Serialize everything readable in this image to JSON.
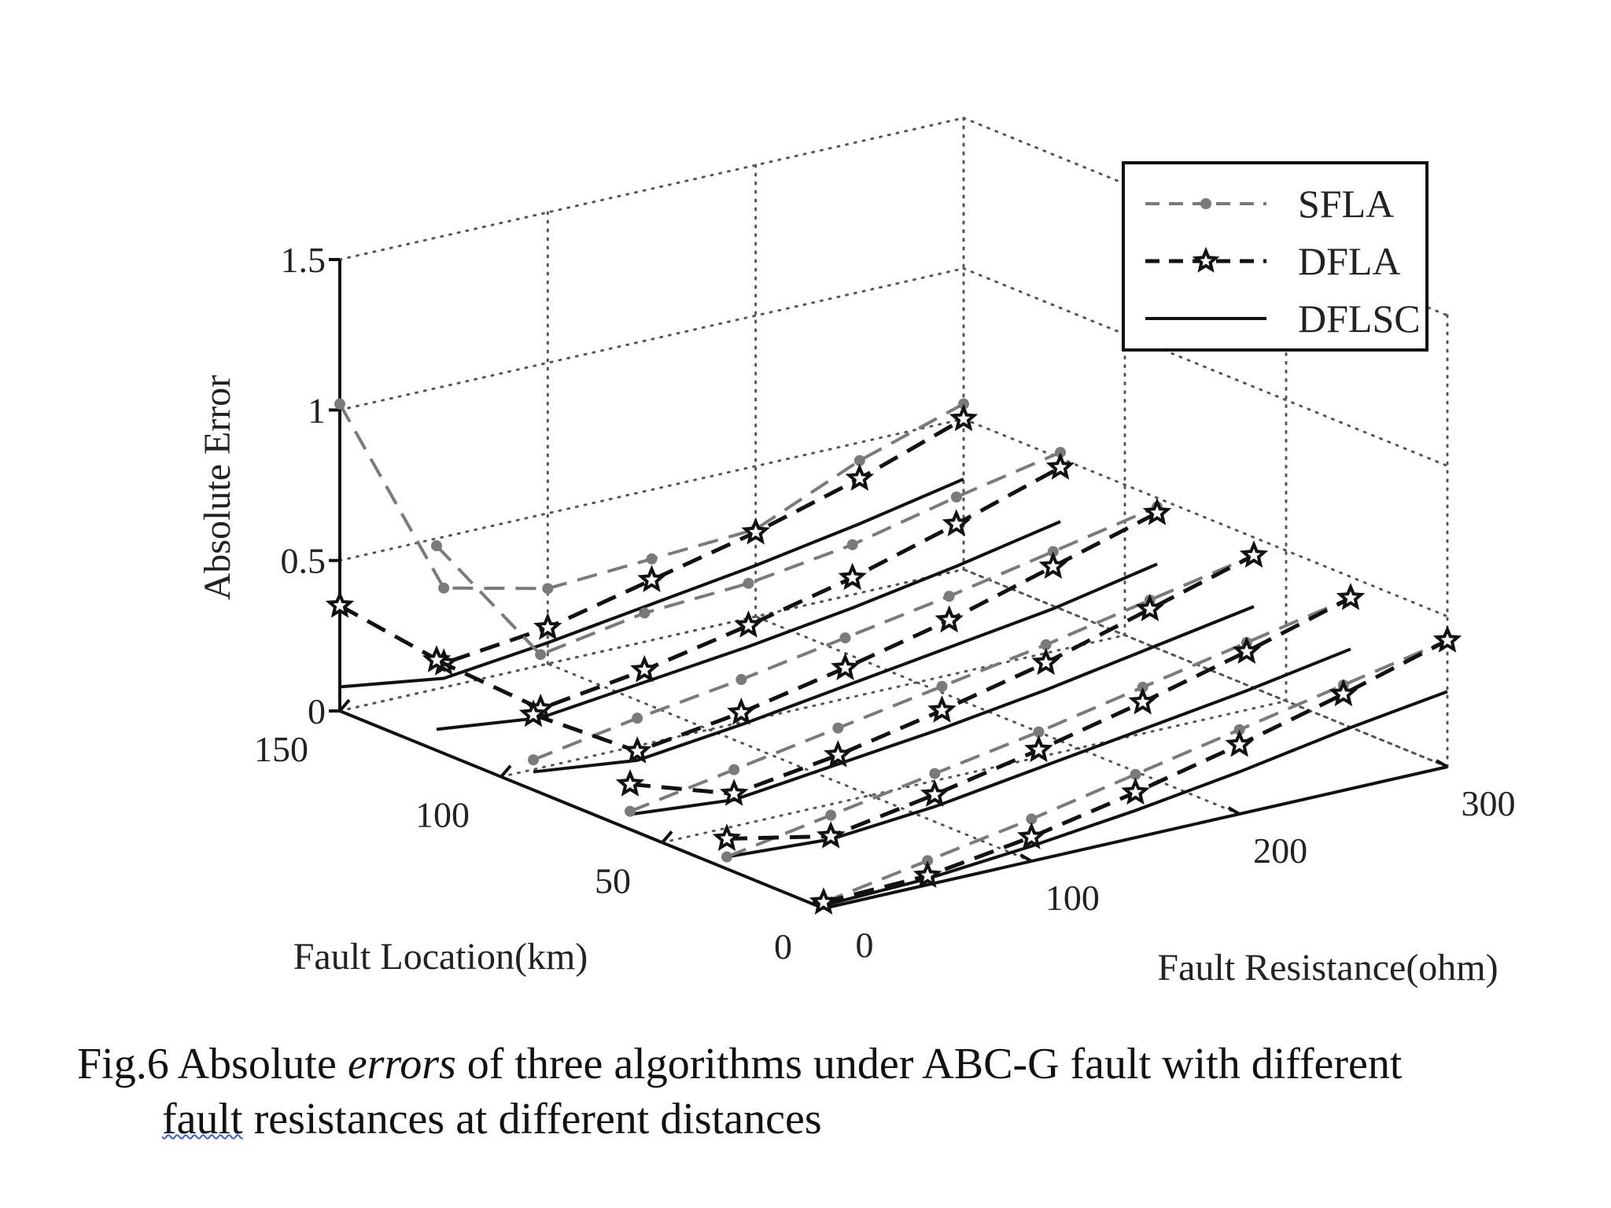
{
  "chart_data": {
    "type": "line",
    "subtype": "3d-waterfall",
    "axes": {
      "x": {
        "label": "Fault Resistance(ohm)",
        "ticks": [
          0,
          100,
          200,
          300
        ],
        "range": [
          0,
          300
        ]
      },
      "y": {
        "label": "Fault Location(km)",
        "ticks": [
          0,
          50,
          100,
          150
        ],
        "range": [
          0,
          150
        ]
      },
      "z": {
        "label": "Absolute Error",
        "ticks": [
          "0",
          "0.5",
          "1",
          "1.5"
        ],
        "range": [
          0,
          1.5
        ]
      }
    },
    "grid": true,
    "legend": {
      "position": "top-right",
      "box": true
    },
    "locations": [
      150,
      120,
      90,
      60,
      30,
      0
    ],
    "resistances": [
      0,
      50,
      100,
      150,
      200,
      250,
      300
    ],
    "series": [
      {
        "name": "SFLA",
        "style": "dashed-dot-marker",
        "color": "#7a7a7a",
        "traces": [
          {
            "location": 150,
            "values": [
              1.02,
              0.33,
              0.25,
              0.27,
              0.29,
              0.44,
              0.55
            ]
          },
          {
            "location": 120,
            "values": [
              0.68,
              0.24,
              0.3,
              0.32,
              0.37,
              0.45,
              0.52
            ]
          },
          {
            "location": 90,
            "values": [
              0.1,
              0.16,
              0.21,
              0.27,
              0.33,
              0.4,
              0.47
            ]
          },
          {
            "location": 60,
            "values": [
              0.06,
              0.12,
              0.18,
              0.24,
              0.3,
              0.37,
              0.44
            ]
          },
          {
            "location": 30,
            "values": [
              0.04,
              0.1,
              0.16,
              0.22,
              0.29,
              0.36,
              0.43
            ]
          },
          {
            "location": 0,
            "values": [
              0.02,
              0.08,
              0.14,
              0.21,
              0.28,
              0.35,
              0.42
            ]
          }
        ]
      },
      {
        "name": "DFLA",
        "style": "dashed-star-marker",
        "color": "#111111",
        "traces": [
          {
            "location": 150,
            "values": [
              0.35,
              0.08,
              0.12,
              0.2,
              0.28,
              0.38,
              0.5
            ]
          },
          {
            "location": 120,
            "values": [
              0.3,
              0.06,
              0.11,
              0.18,
              0.26,
              0.36,
              0.47
            ]
          },
          {
            "location": 90,
            "values": [
              0.25,
              0.05,
              0.1,
              0.17,
              0.25,
              0.35,
              0.45
            ]
          },
          {
            "location": 60,
            "values": [
              0.15,
              0.04,
              0.09,
              0.16,
              0.24,
              0.34,
              0.44
            ]
          },
          {
            "location": 30,
            "values": [
              0.1,
              0.03,
              0.09,
              0.16,
              0.24,
              0.33,
              0.43
            ]
          },
          {
            "location": 0,
            "values": [
              0.02,
              0.03,
              0.08,
              0.15,
              0.23,
              0.32,
              0.42
            ]
          }
        ]
      },
      {
        "name": "DFLSC",
        "style": "solid",
        "color": "#111111",
        "traces": [
          {
            "location": 150,
            "values": [
              0.08,
              0.03,
              0.07,
              0.12,
              0.17,
              0.23,
              0.3
            ]
          },
          {
            "location": 120,
            "values": [
              0.07,
              0.03,
              0.07,
              0.11,
              0.16,
              0.22,
              0.29
            ]
          },
          {
            "location": 90,
            "values": [
              0.06,
              0.02,
              0.06,
              0.11,
              0.16,
              0.21,
              0.28
            ]
          },
          {
            "location": 60,
            "values": [
              0.05,
              0.02,
              0.06,
              0.1,
              0.15,
              0.21,
              0.27
            ]
          },
          {
            "location": 30,
            "values": [
              0.04,
              0.02,
              0.05,
              0.1,
              0.15,
              0.2,
              0.26
            ]
          },
          {
            "location": 0,
            "values": [
              0.01,
              0.02,
              0.05,
              0.09,
              0.14,
              0.2,
              0.25
            ]
          }
        ]
      }
    ]
  },
  "caption": {
    "prefix": "Fig.6 Absolute ",
    "italic": "errors",
    "rest": " of three algorithms under ABC-G fault with different",
    "line2_underlined": "fault",
    "line2_rest": " resistances at different distances"
  }
}
